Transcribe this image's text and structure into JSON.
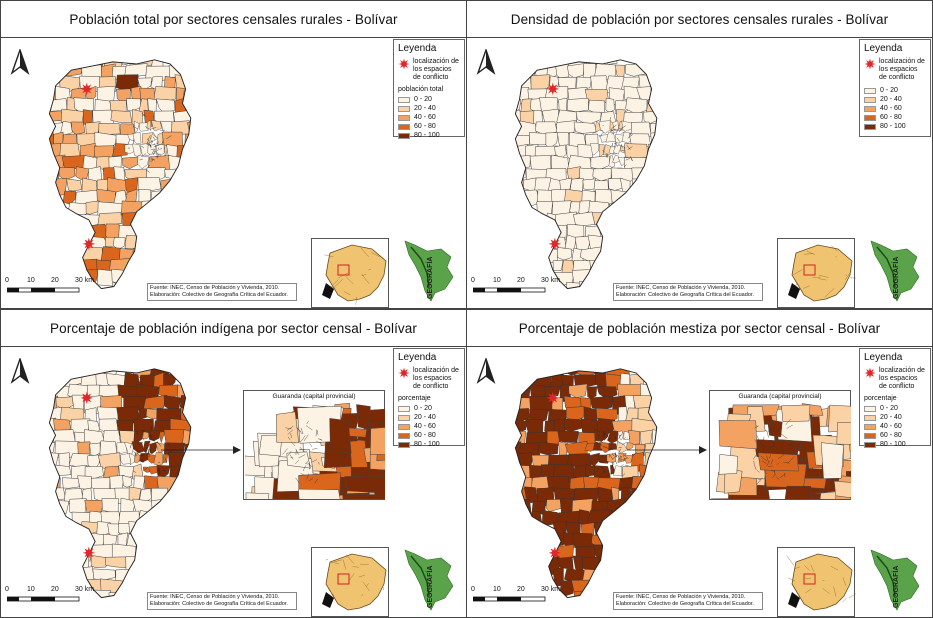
{
  "panels": [
    {
      "title": "Población total por sectores censales rurales - Bolívar",
      "legend_title": "Leyenda",
      "conflict_label": "localización de los espacios de conflicto",
      "sub_label": "población total",
      "classes": [
        "0 - 20",
        "20 - 40",
        "40 - 60",
        "60 - 80",
        "80 - 100"
      ],
      "fill_mode": "pop",
      "scale_labels": [
        "0",
        "10",
        "20",
        "30 km"
      ],
      "credits": [
        "Fuente: INEC, Censo de Población y Vivienda, 2010.",
        "Elaboración: Colectivo de Geografía Crítica del Ecuador."
      ],
      "zoom": null
    },
    {
      "title": "Densidad de población por sectores censales rurales - Bolívar",
      "legend_title": "Leyenda",
      "conflict_label": "localización de los espacios de conflicto",
      "sub_label": "",
      "classes": [
        "0 - 20",
        "20 - 40",
        "40 - 60",
        "60 - 80",
        "80 - 100"
      ],
      "fill_mode": "dens",
      "scale_labels": [
        "0",
        "10",
        "20",
        "30 km"
      ],
      "credits": [
        "Fuente: INEC, Censo de Población y Vivienda, 2010.",
        "Elaboración: Colectivo de Geografía Crítica del Ecuador."
      ],
      "zoom": null
    },
    {
      "title": "Porcentaje de población indígena por sector censal - Bolívar",
      "legend_title": "Leyenda",
      "conflict_label": "localización de los espacios de conflicto",
      "sub_label": "porcentaje",
      "classes": [
        "0 - 20",
        "20 - 40",
        "40 - 60",
        "60 - 80",
        "80 - 100"
      ],
      "fill_mode": "indig",
      "scale_labels": [
        "0",
        "10",
        "20",
        "30 km"
      ],
      "credits": [
        "Fuente: INEC, Censo de Población y Vivienda, 2010.",
        "Elaboración: Colectivo de Geografía Crítica del Ecuador."
      ],
      "zoom": "Guaranda (capital provincial)"
    },
    {
      "title": "Porcentaje de población mestiza por sector censal - Bolívar",
      "legend_title": "Leyenda",
      "conflict_label": "localización de los espacios de conflicto",
      "sub_label": "porcentaje",
      "classes": [
        "0 - 20",
        "20 - 40",
        "40 - 60",
        "60 - 80",
        "80 - 100"
      ],
      "fill_mode": "mest",
      "scale_labels": [
        "0",
        "10",
        "20",
        "30 km"
      ],
      "credits": [
        "Fuente: INEC, Censo de Población y Vivienda, 2010.",
        "Elaboración: Colectivo de Geografía Crítica del Ecuador."
      ],
      "zoom": "Guaranda (capital provincial)"
    }
  ],
  "class_colors": [
    "#fdf3e4",
    "#fbd2a6",
    "#f4a262",
    "#d9661c",
    "#7a2a06"
  ],
  "conflict_color": "#e0262a",
  "logo_text": "GEOGRAFÍA",
  "north_symbol": "north-arrow"
}
